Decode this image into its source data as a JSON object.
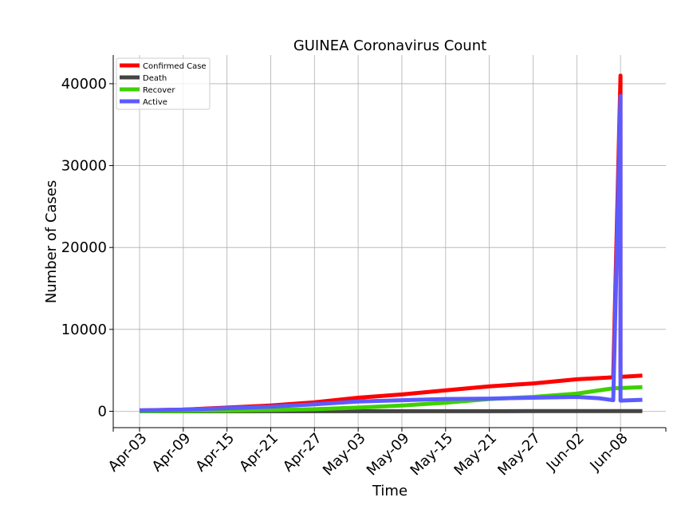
{
  "chart_data": {
    "type": "line",
    "title": "GUINEA Coronavirus Count",
    "xlabel": "Time",
    "ylabel": "Number of Cases",
    "ylim": [
      -2000,
      43500
    ],
    "yticks": [
      0,
      10000,
      20000,
      30000,
      40000
    ],
    "grid": true,
    "legend_position": "top-left",
    "x_start": "Apr-03",
    "x_end": "Jun-13",
    "xticks": [
      "Apr-03",
      "Apr-09",
      "Apr-15",
      "Apr-21",
      "Apr-27",
      "May-03",
      "May-09",
      "May-15",
      "May-21",
      "May-27",
      "Jun-02",
      "Jun-08"
    ],
    "series": [
      {
        "name": "Confirmed Case",
        "color": "#ff0000",
        "points": [
          [
            "Apr-03",
            100
          ],
          [
            "Apr-09",
            200
          ],
          [
            "Apr-15",
            450
          ],
          [
            "Apr-21",
            700
          ],
          [
            "Apr-27",
            1100
          ],
          [
            "May-03",
            1650
          ],
          [
            "May-09",
            2050
          ],
          [
            "May-15",
            2550
          ],
          [
            "May-21",
            3050
          ],
          [
            "May-27",
            3400
          ],
          [
            "Jun-02",
            3900
          ],
          [
            "Jun-07",
            4150
          ],
          [
            "Jun-08",
            41000
          ],
          [
            "Jun-08",
            4200
          ],
          [
            "Jun-11",
            4350
          ]
        ]
      },
      {
        "name": "Death",
        "color": "#444444",
        "points": [
          [
            "Apr-03",
            0
          ],
          [
            "Apr-21",
            5
          ],
          [
            "May-09",
            10
          ],
          [
            "May-27",
            20
          ],
          [
            "Jun-11",
            25
          ]
        ]
      },
      {
        "name": "Recover",
        "color": "#3fd000",
        "points": [
          [
            "Apr-03",
            0
          ],
          [
            "Apr-15",
            80
          ],
          [
            "Apr-21",
            150
          ],
          [
            "Apr-27",
            250
          ],
          [
            "May-03",
            450
          ],
          [
            "May-09",
            700
          ],
          [
            "May-15",
            1050
          ],
          [
            "May-21",
            1500
          ],
          [
            "May-27",
            1750
          ],
          [
            "Jun-02",
            2150
          ],
          [
            "Jun-07",
            2800
          ],
          [
            "Jun-11",
            2950
          ]
        ]
      },
      {
        "name": "Active",
        "color": "#5b5bff",
        "points": [
          [
            "Apr-03",
            100
          ],
          [
            "Apr-09",
            200
          ],
          [
            "Apr-15",
            380
          ],
          [
            "Apr-21",
            550
          ],
          [
            "Apr-27",
            850
          ],
          [
            "May-03",
            1200
          ],
          [
            "May-09",
            1350
          ],
          [
            "May-15",
            1500
          ],
          [
            "May-21",
            1550
          ],
          [
            "May-27",
            1650
          ],
          [
            "Jun-02",
            1750
          ],
          [
            "Jun-05",
            1600
          ],
          [
            "Jun-07",
            1350
          ],
          [
            "Jun-08",
            38500
          ],
          [
            "Jun-08",
            1300
          ],
          [
            "Jun-11",
            1400
          ]
        ]
      }
    ]
  }
}
